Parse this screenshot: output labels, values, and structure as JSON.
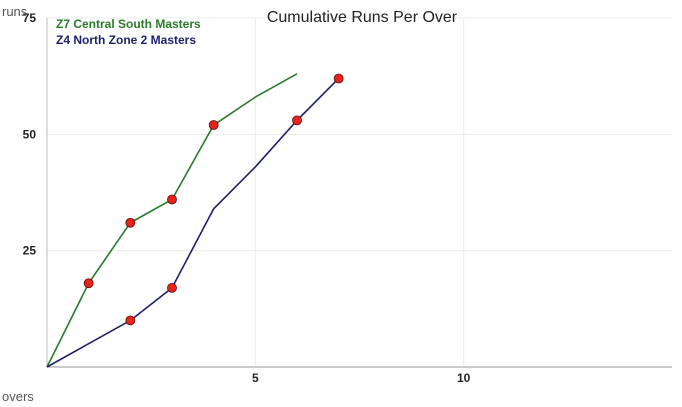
{
  "chart_data": {
    "type": "line",
    "title": "Cumulative Runs Per Over",
    "xlabel": "overs",
    "ylabel": "runs",
    "xlim": [
      0,
      15
    ],
    "ylim": [
      0,
      75
    ],
    "x_ticks": [
      5,
      10
    ],
    "y_ticks": [
      25,
      50,
      75
    ],
    "grid": true,
    "legend_position": "top-left",
    "series": [
      {
        "name": "Z7 Central South Masters",
        "color": "#2a7a2a",
        "x": [
          0,
          1,
          2,
          3,
          4,
          5,
          6
        ],
        "y": [
          0,
          18,
          31,
          36,
          52,
          58,
          63
        ],
        "wicket_markers_x": [
          1,
          2,
          3,
          4
        ]
      },
      {
        "name": "Z4 North Zone 2 Masters",
        "color": "#1f1f6b",
        "x": [
          0,
          1,
          2,
          3,
          4,
          5,
          6,
          7
        ],
        "y": [
          0,
          5,
          10,
          17,
          34,
          43,
          53,
          62
        ],
        "wicket_markers_x": [
          2,
          3,
          6,
          7
        ]
      }
    ],
    "marker_color": "#e8231a"
  }
}
